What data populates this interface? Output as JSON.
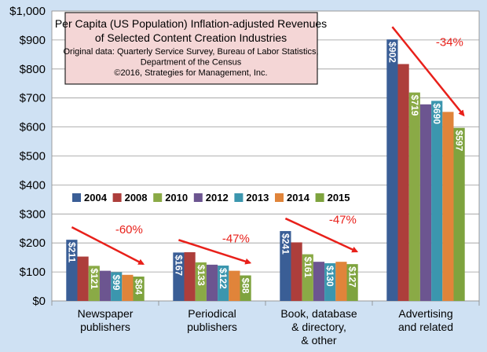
{
  "chart_data": {
    "type": "bar",
    "title": "Per Capita (US Population) Inflation-adjusted Revenues",
    "title_line2": "of Selected Content Creation Industries",
    "subtitle": [
      "Original data: Quarterly Service Survey, Bureau of Labor Statistics,",
      "Department of the Census",
      "©2016, Strategies for Management, Inc."
    ],
    "categories": [
      [
        "Newspaper",
        "publishers"
      ],
      [
        "Periodical",
        "publishers"
      ],
      [
        "Book, database",
        "& directory,",
        "& other"
      ],
      [
        "Advertising",
        "and related"
      ]
    ],
    "series": [
      {
        "name": "2004",
        "color": "#3a5e96",
        "values": [
          211,
          167,
          241,
          902
        ]
      },
      {
        "name": "2008",
        "color": "#ad3e3b",
        "values": [
          153,
          168,
          202,
          817
        ]
      },
      {
        "name": "2010",
        "color": "#8aaa46",
        "values": [
          121,
          133,
          161,
          719
        ]
      },
      {
        "name": "2012",
        "color": "#6c5590",
        "values": [
          104,
          125,
          135,
          678
        ]
      },
      {
        "name": "2013",
        "color": "#3b96ae",
        "values": [
          99,
          122,
          130,
          690
        ]
      },
      {
        "name": "2014",
        "color": "#e0843a",
        "values": [
          90,
          104,
          135,
          652
        ]
      },
      {
        "name": "2015",
        "color": "#7ea33e",
        "values": [
          84,
          88,
          127,
          597
        ]
      }
    ],
    "bar_labels": [
      {
        "category": 0,
        "series": 0,
        "text": "$211"
      },
      {
        "category": 0,
        "series": 2,
        "text": "$121"
      },
      {
        "category": 0,
        "series": 4,
        "text": "$99"
      },
      {
        "category": 0,
        "series": 6,
        "text": "$84"
      },
      {
        "category": 1,
        "series": 0,
        "text": "$167"
      },
      {
        "category": 1,
        "series": 2,
        "text": "$133"
      },
      {
        "category": 1,
        "series": 4,
        "text": "$122"
      },
      {
        "category": 1,
        "series": 6,
        "text": "$88"
      },
      {
        "category": 2,
        "series": 0,
        "text": "$241"
      },
      {
        "category": 2,
        "series": 2,
        "text": "$161"
      },
      {
        "category": 2,
        "series": 4,
        "text": "$130"
      },
      {
        "category": 2,
        "series": 6,
        "text": "$127"
      },
      {
        "category": 3,
        "series": 0,
        "text": "$902"
      },
      {
        "category": 3,
        "series": 2,
        "text": "$719"
      },
      {
        "category": 3,
        "series": 4,
        "text": "$690"
      },
      {
        "category": 3,
        "series": 6,
        "text": "$597"
      }
    ],
    "annotations": [
      {
        "category": 0,
        "text": "-60%"
      },
      {
        "category": 1,
        "text": "-47%"
      },
      {
        "category": 2,
        "text": "-47%"
      },
      {
        "category": 3,
        "text": "-34%"
      }
    ],
    "ylim": [
      0,
      1000
    ],
    "yticks": [
      0,
      100,
      200,
      300,
      400,
      500,
      600,
      700,
      800,
      900,
      1000
    ],
    "ytick_labels": [
      "$0",
      "$100",
      "$200",
      "$300",
      "$400",
      "$500",
      "$600",
      "$700",
      "$800",
      "$900",
      "$1,000"
    ],
    "xlabel": "",
    "ylabel": "",
    "grid": true,
    "legend": "center-left",
    "colors": {
      "background": "#cfe1f3",
      "plot_bg": "#ffffff",
      "title_box": "#f4d6d6",
      "arrow": "#e8201a",
      "label_red": "#e8201a"
    }
  }
}
